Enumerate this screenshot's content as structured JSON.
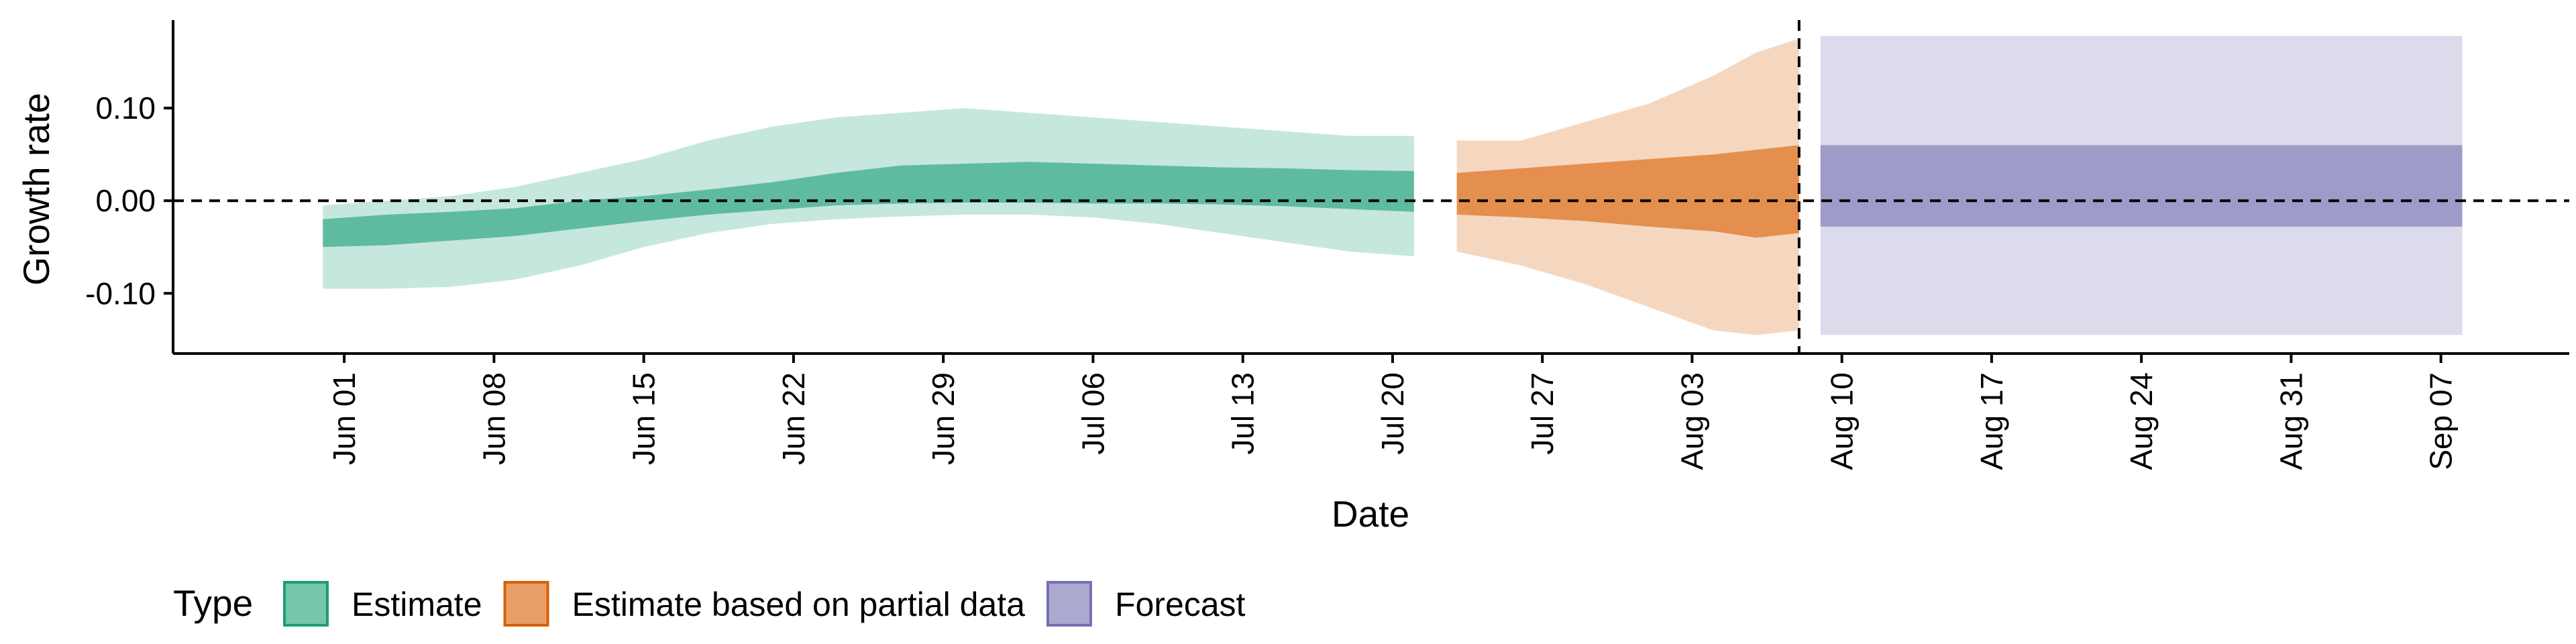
{
  "chart_data": {
    "type": "area",
    "xlabel": "Date",
    "ylabel": "Growth rate",
    "xlim": [
      "2021-05-24",
      "2021-09-13"
    ],
    "ylim": [
      -0.165,
      0.195
    ],
    "y_ticks": [
      -0.1,
      0.0,
      0.1
    ],
    "y_tick_labels": [
      "-0.10",
      "0.00",
      "0.10"
    ],
    "x_ticks": [
      "2021-06-01",
      "2021-06-08",
      "2021-06-15",
      "2021-06-22",
      "2021-06-29",
      "2021-07-06",
      "2021-07-13",
      "2021-07-20",
      "2021-07-27",
      "2021-08-03",
      "2021-08-10",
      "2021-08-17",
      "2021-08-24",
      "2021-08-31",
      "2021-09-07"
    ],
    "x_tick_labels": [
      "Jun 01",
      "Jun 08",
      "Jun 15",
      "Jun 22",
      "Jun 29",
      "Jul 06",
      "Jul 13",
      "Jul 20",
      "Jul 27",
      "Aug 03",
      "Aug 10",
      "Aug 17",
      "Aug 24",
      "Aug 31",
      "Sep 07"
    ],
    "reference_lines": {
      "y": 0.0,
      "x": "2021-08-08",
      "style": "dashed"
    },
    "grid": false,
    "legend": {
      "title": "Type",
      "position": "bottom-left"
    },
    "series": [
      {
        "name": "Estimate",
        "color": "#1b9e77",
        "inner_opacity": 0.6,
        "outer_opacity": 0.25,
        "x": [
          "2021-05-31",
          "2021-06-03",
          "2021-06-06",
          "2021-06-09",
          "2021-06-12",
          "2021-06-15",
          "2021-06-18",
          "2021-06-21",
          "2021-06-24",
          "2021-06-27",
          "2021-06-30",
          "2021-07-03",
          "2021-07-06",
          "2021-07-09",
          "2021-07-12",
          "2021-07-15",
          "2021-07-18",
          "2021-07-21"
        ],
        "upper90": [
          -0.005,
          0.0,
          0.005,
          0.015,
          0.03,
          0.045,
          0.065,
          0.08,
          0.09,
          0.095,
          0.1,
          0.095,
          0.09,
          0.085,
          0.08,
          0.075,
          0.07,
          0.07
        ],
        "upper50": [
          -0.02,
          -0.015,
          -0.012,
          -0.008,
          0.0,
          0.005,
          0.012,
          0.02,
          0.03,
          0.038,
          0.04,
          0.042,
          0.04,
          0.038,
          0.036,
          0.035,
          0.033,
          0.032
        ],
        "lower50": [
          -0.05,
          -0.048,
          -0.043,
          -0.038,
          -0.03,
          -0.022,
          -0.015,
          -0.01,
          -0.005,
          -0.003,
          -0.002,
          -0.002,
          -0.003,
          -0.003,
          -0.004,
          -0.006,
          -0.009,
          -0.012
        ],
        "lower90": [
          -0.095,
          -0.095,
          -0.093,
          -0.085,
          -0.07,
          -0.05,
          -0.035,
          -0.025,
          -0.02,
          -0.017,
          -0.015,
          -0.015,
          -0.018,
          -0.025,
          -0.035,
          -0.045,
          -0.055,
          -0.06
        ]
      },
      {
        "name": "Estimate based on partial data",
        "color": "#d95f02",
        "inner_opacity": 0.6,
        "outer_opacity": 0.25,
        "x": [
          "2021-07-23",
          "2021-07-26",
          "2021-07-29",
          "2021-08-01",
          "2021-08-04",
          "2021-08-06",
          "2021-08-08"
        ],
        "upper90": [
          0.065,
          0.065,
          0.085,
          0.105,
          0.135,
          0.16,
          0.175
        ],
        "upper50": [
          0.03,
          0.035,
          0.04,
          0.045,
          0.05,
          0.055,
          0.06
        ],
        "lower50": [
          -0.015,
          -0.018,
          -0.022,
          -0.028,
          -0.033,
          -0.04,
          -0.035
        ],
        "lower90": [
          -0.055,
          -0.07,
          -0.09,
          -0.115,
          -0.14,
          -0.145,
          -0.14
        ]
      },
      {
        "name": "Forecast",
        "color": "#7570b3",
        "inner_opacity": 0.6,
        "outer_opacity": 0.25,
        "x": [
          "2021-08-09",
          "2021-09-08"
        ],
        "upper90": [
          0.178,
          0.178
        ],
        "upper50": [
          0.06,
          0.06
        ],
        "lower50": [
          -0.028,
          -0.028
        ],
        "lower90": [
          -0.145,
          -0.145
        ]
      }
    ]
  }
}
